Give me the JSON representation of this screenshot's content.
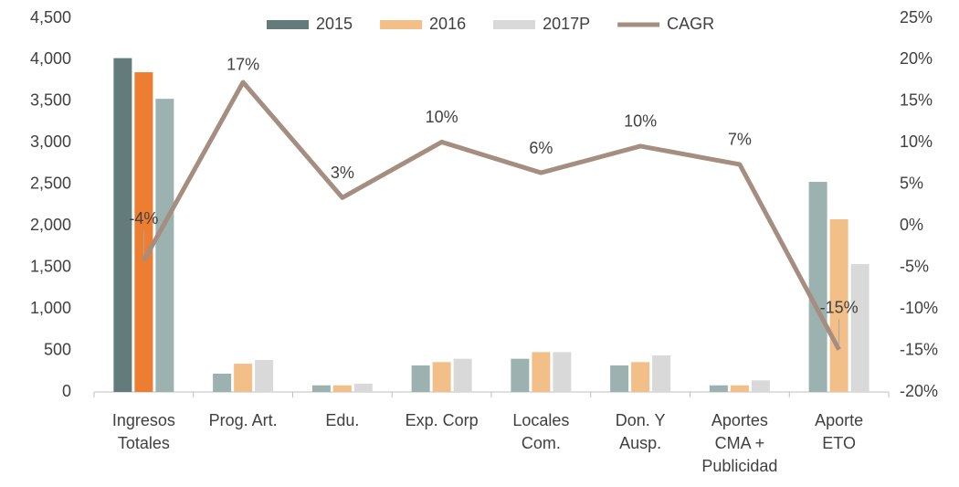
{
  "chart_data": {
    "type": "bar_line",
    "categories": [
      "Ingresos\nTotales",
      "Prog. Art.",
      "Edu.",
      "Exp. Corp",
      "Locales\nCom.",
      "Don. Y\nAusp.",
      "Aportes\nCMA +\nPublicidad",
      "Aporte\nETO"
    ],
    "series": [
      {
        "name": "2015",
        "type": "bar",
        "color": "#637b7b",
        "colors": [
          "#637b7b",
          "#9bb2b0",
          "#9bb2b0",
          "#9bb2b0",
          "#9bb2b0",
          "#9bb2b0",
          "#9bb2b0",
          "#9bb2b0"
        ],
        "values": [
          4020,
          220,
          80,
          320,
          400,
          320,
          80,
          2530
        ]
      },
      {
        "name": "2016",
        "type": "bar",
        "color": "#f2bf88",
        "colors": [
          "#ed7d31",
          "#f2bf88",
          "#f2bf88",
          "#f2bf88",
          "#f2bf88",
          "#f2bf88",
          "#f2bf88",
          "#f2bf88"
        ],
        "values": [
          3850,
          340,
          80,
          360,
          480,
          360,
          80,
          2080
        ]
      },
      {
        "name": "2017P",
        "type": "bar",
        "color": "#d9d9d9",
        "colors": [
          "#9bb2b0",
          "#d9d9d9",
          "#d9d9d9",
          "#d9d9d9",
          "#d9d9d9",
          "#d9d9d9",
          "#d9d9d9",
          "#d9d9d9"
        ],
        "values": [
          3530,
          385,
          100,
          400,
          480,
          440,
          140,
          1540
        ]
      },
      {
        "name": "CAGR",
        "type": "line",
        "axis": "y2",
        "color": "#a58e80",
        "values": [
          -4.2,
          17.3,
          3.4,
          10.1,
          6.4,
          9.6,
          7.4,
          -14.9
        ],
        "value_labels": [
          "-4%",
          "17%",
          "3%",
          "10%",
          "6%",
          "10%",
          "7%",
          "-15%"
        ]
      }
    ],
    "ylim": [
      0,
      4500
    ],
    "yticks": [
      0,
      500,
      {
        "value": 1000,
        "label": "1,000"
      },
      {
        "value": 1500,
        "label": "1,500"
      },
      {
        "value": 2000,
        "label": "2,000"
      },
      {
        "value": 2500,
        "label": "2,500"
      },
      {
        "value": 3000,
        "label": "3,000"
      },
      {
        "value": 3500,
        "label": "3,500"
      },
      {
        "value": 4000,
        "label": "4,000"
      },
      {
        "value": 4500,
        "label": "4,500"
      }
    ],
    "y2lim": [
      -20,
      25
    ],
    "y2ticks": [
      {
        "value": -20,
        "label": "-20%"
      },
      {
        "value": -15,
        "label": "-15%"
      },
      {
        "value": -10,
        "label": "-10%"
      },
      {
        "value": -5,
        "label": "-5%"
      },
      {
        "value": 0,
        "label": "0%"
      },
      {
        "value": 5,
        "label": "5%"
      },
      {
        "value": 10,
        "label": "10%"
      },
      {
        "value": 15,
        "label": "15%"
      },
      {
        "value": 20,
        "label": "20%"
      },
      {
        "value": 25,
        "label": "25%"
      }
    ],
    "grid": false,
    "legend": "top"
  }
}
